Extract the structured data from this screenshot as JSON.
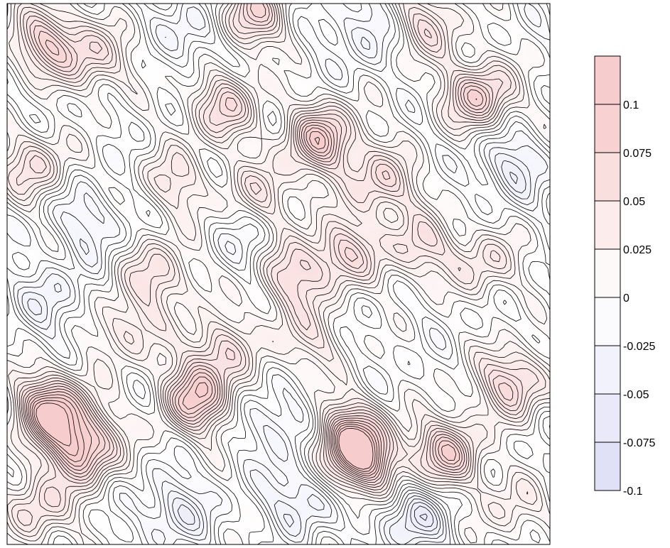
{
  "chart_data": {
    "type": "heatmap",
    "subtype": "filled contour plot with line contours",
    "title": "",
    "xlabel": "",
    "ylabel": "",
    "axes_tick_labels": "none",
    "grid": false,
    "colorbar": {
      "placement": "right",
      "range": [
        -0.1,
        0.125
      ],
      "levels": [
        -0.1,
        -0.075,
        -0.05,
        -0.025,
        0,
        0.025,
        0.05,
        0.075,
        0.1,
        0.125
      ],
      "ticks": [
        {
          "value": 0.1,
          "label": "0.1"
        },
        {
          "value": 0.075,
          "label": "0.075"
        },
        {
          "value": 0.05,
          "label": "0.05"
        },
        {
          "value": 0.025,
          "label": "0.025"
        },
        {
          "value": 0,
          "label": "0"
        },
        {
          "value": -0.025,
          "label": "-0.025"
        },
        {
          "value": -0.05,
          "label": "-0.05"
        },
        {
          "value": -0.075,
          "label": "-0.075"
        },
        {
          "value": -0.1,
          "label": "-0.1"
        }
      ],
      "colors": {
        "negative_max": "#dcdcf6",
        "zero": "#ffffff",
        "positive_max": "#f7cccc"
      }
    },
    "field_features": [
      {
        "value": 0.11,
        "x": 0.08,
        "y": 0.75
      },
      {
        "value": 0.1,
        "x": 0.14,
        "y": 0.82
      },
      {
        "value": 0.09,
        "x": 0.35,
        "y": 0.73
      },
      {
        "value": 0.09,
        "x": 0.58,
        "y": 0.25
      },
      {
        "value": 0.08,
        "x": 0.66,
        "y": 0.85
      },
      {
        "value": 0.09,
        "x": 0.63,
        "y": 0.8
      },
      {
        "value": 0.08,
        "x": 0.87,
        "y": 0.17
      },
      {
        "value": 0.08,
        "x": 0.81,
        "y": 0.83
      },
      {
        "value": 0.07,
        "x": 0.45,
        "y": 0.02
      },
      {
        "value": 0.07,
        "x": 0.07,
        "y": 0.07
      },
      {
        "value": 0.07,
        "x": 0.93,
        "y": 0.7
      },
      {
        "value": 0.06,
        "x": 0.4,
        "y": 0.19
      },
      {
        "value": 0.06,
        "x": 0.62,
        "y": 0.46
      },
      {
        "value": 0.06,
        "x": 0.69,
        "y": 0.33
      },
      {
        "value": 0.06,
        "x": 0.52,
        "y": 0.5
      },
      {
        "value": 0.05,
        "x": 0.28,
        "y": 0.5
      },
      {
        "value": 0.05,
        "x": 0.05,
        "y": 0.3
      },
      {
        "value": 0.05,
        "x": 0.16,
        "y": 0.1
      },
      {
        "value": 0.05,
        "x": 0.77,
        "y": 0.04
      },
      {
        "value": 0.05,
        "x": 0.39,
        "y": 0.64
      },
      {
        "value": 0.05,
        "x": 0.06,
        "y": 0.93
      },
      {
        "value": 0.05,
        "x": 0.76,
        "y": 0.45
      },
      {
        "value": 0.04,
        "x": 0.31,
        "y": 0.33
      },
      {
        "value": 0.04,
        "x": 0.88,
        "y": 0.48
      },
      {
        "value": 0.04,
        "x": 0.47,
        "y": 0.35
      },
      {
        "value": 0.04,
        "x": 0.55,
        "y": 0.62
      },
      {
        "value": 0.04,
        "x": 0.22,
        "y": 0.6
      },
      {
        "value": 0.03,
        "x": 0.93,
        "y": 0.93
      },
      {
        "value": -0.04,
        "x": 0.31,
        "y": 0.94
      },
      {
        "value": -0.04,
        "x": 0.54,
        "y": 0.92
      },
      {
        "value": -0.05,
        "x": 0.75,
        "y": 0.95
      },
      {
        "value": -0.04,
        "x": 0.93,
        "y": 0.3
      },
      {
        "value": -0.03,
        "x": 0.15,
        "y": 0.4
      },
      {
        "value": -0.03,
        "x": 0.5,
        "y": 0.78
      },
      {
        "value": -0.03,
        "x": 0.35,
        "y": 0.05
      },
      {
        "value": -0.03,
        "x": 0.08,
        "y": 0.55
      },
      {
        "value": -0.03,
        "x": 0.66,
        "y": 0.05
      },
      {
        "value": -0.02,
        "x": 0.45,
        "y": 0.45
      }
    ]
  }
}
